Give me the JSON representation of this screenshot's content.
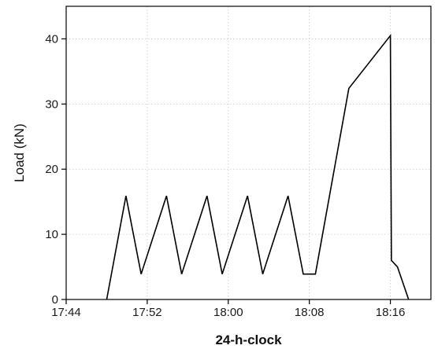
{
  "chart_data": {
    "type": "line",
    "title": "",
    "xlabel": "24-h-clock",
    "ylabel": "Load (kN)",
    "x_unit": "time of day (HH:MM)",
    "xlim": [
      "17:44",
      "18:20"
    ],
    "ylim": [
      0,
      45
    ],
    "x_ticks": [
      "17:44",
      "17:52",
      "18:00",
      "18:08",
      "18:16"
    ],
    "y_ticks": [
      0,
      10,
      20,
      30,
      40
    ],
    "grid": true,
    "legend": "none",
    "line_color": "#000000",
    "grid_color": "#c8c8c8",
    "series": [
      {
        "x": [
          "17:48:00",
          "17:49:54",
          "17:51:24",
          "17:53:54",
          "17:55:24",
          "17:57:54",
          "17:59:24",
          "18:01:54",
          "18:03:24",
          "18:05:54",
          "18:07:24",
          "18:08:36",
          "18:11:54",
          "18:16:00",
          "18:16:06",
          "18:16:42",
          "18:17:48"
        ],
        "y": [
          0,
          15.9,
          3.9,
          15.9,
          3.9,
          15.9,
          3.9,
          15.9,
          3.9,
          15.9,
          3.9,
          3.9,
          32.4,
          40.5,
          6.0,
          5.0,
          0
        ]
      }
    ]
  }
}
